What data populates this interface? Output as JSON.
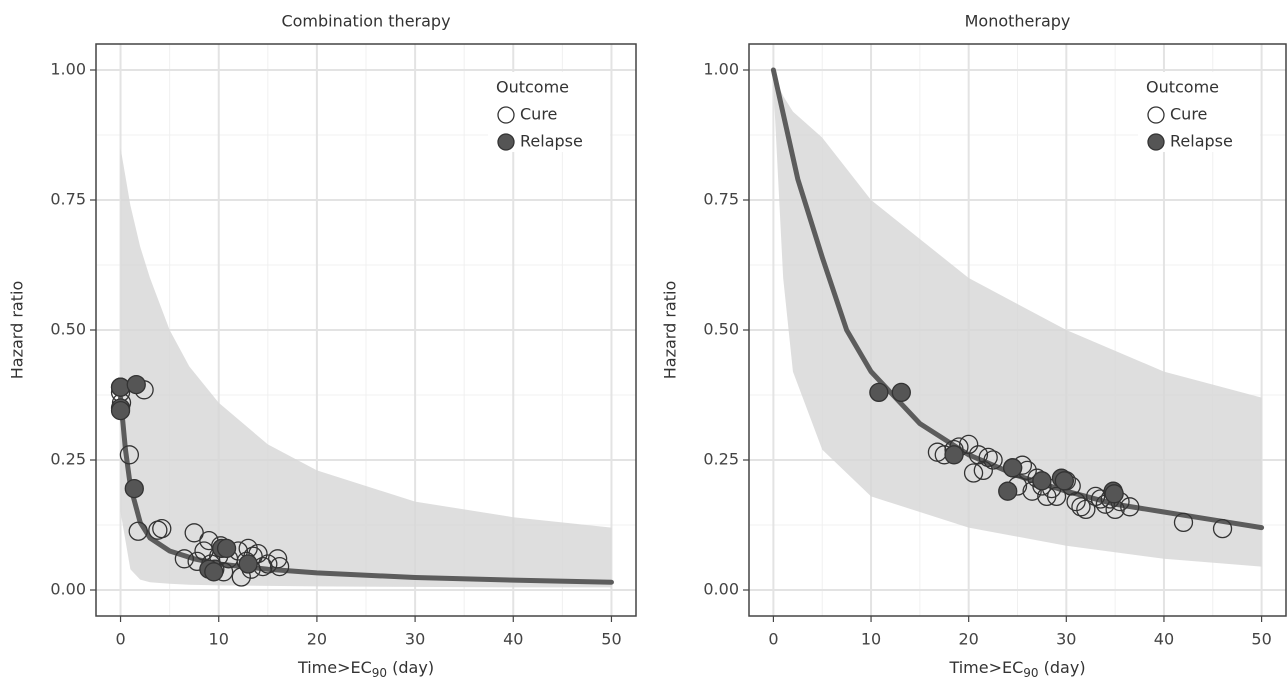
{
  "chart_data": [
    {
      "type": "scatter",
      "title": "Combination therapy",
      "x_label": {
        "text": "Time>EC",
        "subscript": "90",
        "suffix": " (day)"
      },
      "y_label": "Hazard ratio",
      "xlim": [
        -2.5,
        52.5
      ],
      "ylim": [
        -0.05,
        1.05
      ],
      "xticks": [
        0,
        10,
        20,
        30,
        40,
        50
      ],
      "yticks": [
        {
          "value": 0,
          "label": "0.00"
        },
        {
          "value": 0.25,
          "label": "0.25"
        },
        {
          "value": 0.5,
          "label": "0.50"
        },
        {
          "value": 0.75,
          "label": "0.75"
        },
        {
          "value": 1,
          "label": "1.00"
        }
      ],
      "grid": true,
      "minor_grid": true,
      "legend_title": "Outcome",
      "legend": "upper right",
      "series": [
        {
          "name": "Cure",
          "color": "#ffffff",
          "x": [
            0,
            0,
            0.1,
            0.9,
            2.4,
            1.8,
            3.8,
            4.2,
            6.5,
            7.5,
            7.8,
            8.5,
            9,
            9.2,
            9.6,
            10,
            10.2,
            10.5,
            11,
            12,
            12.3,
            12.8,
            13,
            13.3,
            13.5,
            14,
            14.5,
            15,
            16,
            16.2
          ],
          "values": [
            0.38,
            0.39,
            0.36,
            0.26,
            0.385,
            0.113,
            0.115,
            0.118,
            0.06,
            0.11,
            0.055,
            0.075,
            0.095,
            0.05,
            0.04,
            0.065,
            0.085,
            0.035,
            0.06,
            0.075,
            0.025,
            0.055,
            0.08,
            0.04,
            0.065,
            0.07,
            0.045,
            0.05,
            0.06,
            0.045
          ]
        },
        {
          "name": "Relapse",
          "color": "#555555",
          "x": [
            0,
            0,
            0,
            1.4,
            1.6,
            9,
            9.5,
            10.3,
            10.8,
            13
          ],
          "values": [
            0.39,
            0.35,
            0.345,
            0.195,
            0.395,
            0.04,
            0.035,
            0.08,
            0.08,
            0.05
          ]
        }
      ],
      "curve": {
        "color": "#5c5c5c",
        "x": [
          0,
          0.5,
          1,
          2,
          3,
          5,
          7.5,
          10,
          15,
          20,
          30,
          40,
          50
        ],
        "y": [
          0.37,
          0.27,
          0.2,
          0.13,
          0.1,
          0.075,
          0.06,
          0.05,
          0.04,
          0.033,
          0.024,
          0.019,
          0.015
        ]
      },
      "band": {
        "color": "#d6d6d6",
        "x": [
          0,
          1,
          2,
          3,
          5,
          7,
          10,
          15,
          20,
          30,
          40,
          50
        ],
        "lower": [
          0.15,
          0.04,
          0.02,
          0.015,
          0.012,
          0.01,
          0.009,
          0.008,
          0.007,
          0.006,
          0.005,
          0.005
        ],
        "upper": [
          0.85,
          0.74,
          0.66,
          0.6,
          0.5,
          0.43,
          0.36,
          0.28,
          0.23,
          0.17,
          0.14,
          0.12
        ]
      }
    },
    {
      "type": "scatter",
      "title": "Monotherapy",
      "x_label": {
        "text": "Time>EC",
        "subscript": "90",
        "suffix": " (day)"
      },
      "y_label": "Hazard ratio",
      "xlim": [
        -2.5,
        52.5
      ],
      "ylim": [
        -0.05,
        1.05
      ],
      "xticks": [
        0,
        10,
        20,
        30,
        40,
        50
      ],
      "yticks": [
        {
          "value": 0,
          "label": "0.00"
        },
        {
          "value": 0.25,
          "label": "0.25"
        },
        {
          "value": 0.5,
          "label": "0.50"
        },
        {
          "value": 0.75,
          "label": "0.75"
        },
        {
          "value": 1,
          "label": "1.00"
        }
      ],
      "grid": true,
      "minor_grid": true,
      "legend_title": "Outcome",
      "legend": "upper right",
      "series": [
        {
          "name": "Cure",
          "color": "#ffffff",
          "x": [
            16.8,
            17.5,
            18.5,
            19,
            20,
            20.5,
            21,
            21.5,
            22,
            22.5,
            24.5,
            25,
            25.5,
            26,
            26.5,
            27,
            27.5,
            28,
            28.5,
            29,
            30,
            30.5,
            31,
            31.5,
            32,
            33,
            33.5,
            34,
            34.5,
            35,
            35.5,
            36.5,
            42,
            46
          ],
          "values": [
            0.265,
            0.26,
            0.27,
            0.275,
            0.28,
            0.225,
            0.26,
            0.23,
            0.255,
            0.25,
            0.235,
            0.2,
            0.24,
            0.23,
            0.19,
            0.215,
            0.2,
            0.18,
            0.195,
            0.18,
            0.21,
            0.2,
            0.17,
            0.16,
            0.155,
            0.18,
            0.175,
            0.165,
            0.175,
            0.155,
            0.17,
            0.16,
            0.13,
            0.118
          ]
        },
        {
          "name": "Relapse",
          "color": "#555555",
          "x": [
            10.8,
            13.1,
            18.5,
            24,
            24.5,
            27.5,
            29.5,
            29.8,
            34.8,
            34.9
          ],
          "values": [
            0.38,
            0.38,
            0.26,
            0.19,
            0.235,
            0.21,
            0.215,
            0.21,
            0.19,
            0.185
          ]
        }
      ],
      "curve": {
        "color": "#5c5c5c",
        "x": [
          0,
          2.5,
          5,
          7.5,
          10,
          15,
          20,
          25,
          30,
          35,
          40,
          45,
          50
        ],
        "y": [
          1.0,
          0.79,
          0.64,
          0.5,
          0.42,
          0.32,
          0.26,
          0.22,
          0.19,
          0.165,
          0.15,
          0.135,
          0.12
        ]
      },
      "band": {
        "color": "#d6d6d6",
        "x": [
          0,
          1,
          2,
          5,
          10,
          20,
          30,
          40,
          50
        ],
        "lower": [
          0.97,
          0.6,
          0.42,
          0.27,
          0.18,
          0.12,
          0.085,
          0.06,
          0.045
        ],
        "upper": [
          0.99,
          0.95,
          0.92,
          0.87,
          0.75,
          0.6,
          0.5,
          0.42,
          0.37
        ]
      }
    }
  ]
}
